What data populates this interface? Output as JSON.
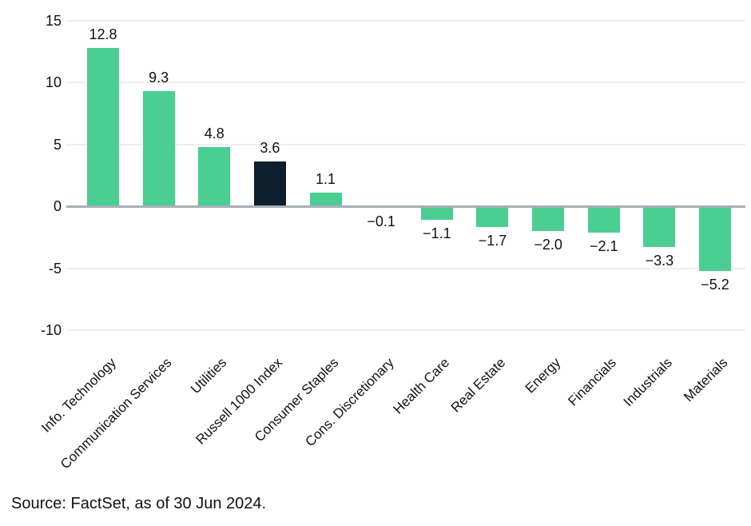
{
  "chart_data": {
    "type": "bar",
    "title": "",
    "categories": [
      "Info. Technology",
      "Communication Services",
      "Utilities",
      "Russell 1000 Index",
      "Consumer Staples",
      "Cons. Discretionary",
      "Health Care",
      "Real Estate",
      "Energy",
      "Financials",
      "Industrials",
      "Materials"
    ],
    "values": [
      12.8,
      9.3,
      4.8,
      3.6,
      1.1,
      -0.1,
      -1.1,
      -1.7,
      -2.0,
      -2.1,
      -3.3,
      -5.2
    ],
    "value_labels": [
      "12.8",
      "9.3",
      "4.8",
      "3.6",
      "1.1",
      "−0.1",
      "−1.1",
      "−1.7",
      "−2.0",
      "−2.1",
      "−3.3",
      "−5.2"
    ],
    "highlight_index": 3,
    "highlight_category": "Russell 1000 Index",
    "xlabel": "",
    "ylabel": "",
    "ylim": [
      -10,
      15
    ],
    "yticks": [
      15,
      10,
      5,
      0,
      -5,
      -10
    ],
    "ytick_labels": [
      "15",
      "10",
      "5",
      "0",
      "-5",
      "-10"
    ],
    "grid": true,
    "legend_position": "none",
    "colors": {
      "bar": "#4BCE92",
      "highlight_bar": "#0D1E2C",
      "zero_line": "#A9AFB9",
      "gridline": "#EFEFEF",
      "text": "#111111"
    }
  },
  "footer": {
    "source_text": "Source: FactSet, as of 30 Jun 2024."
  }
}
